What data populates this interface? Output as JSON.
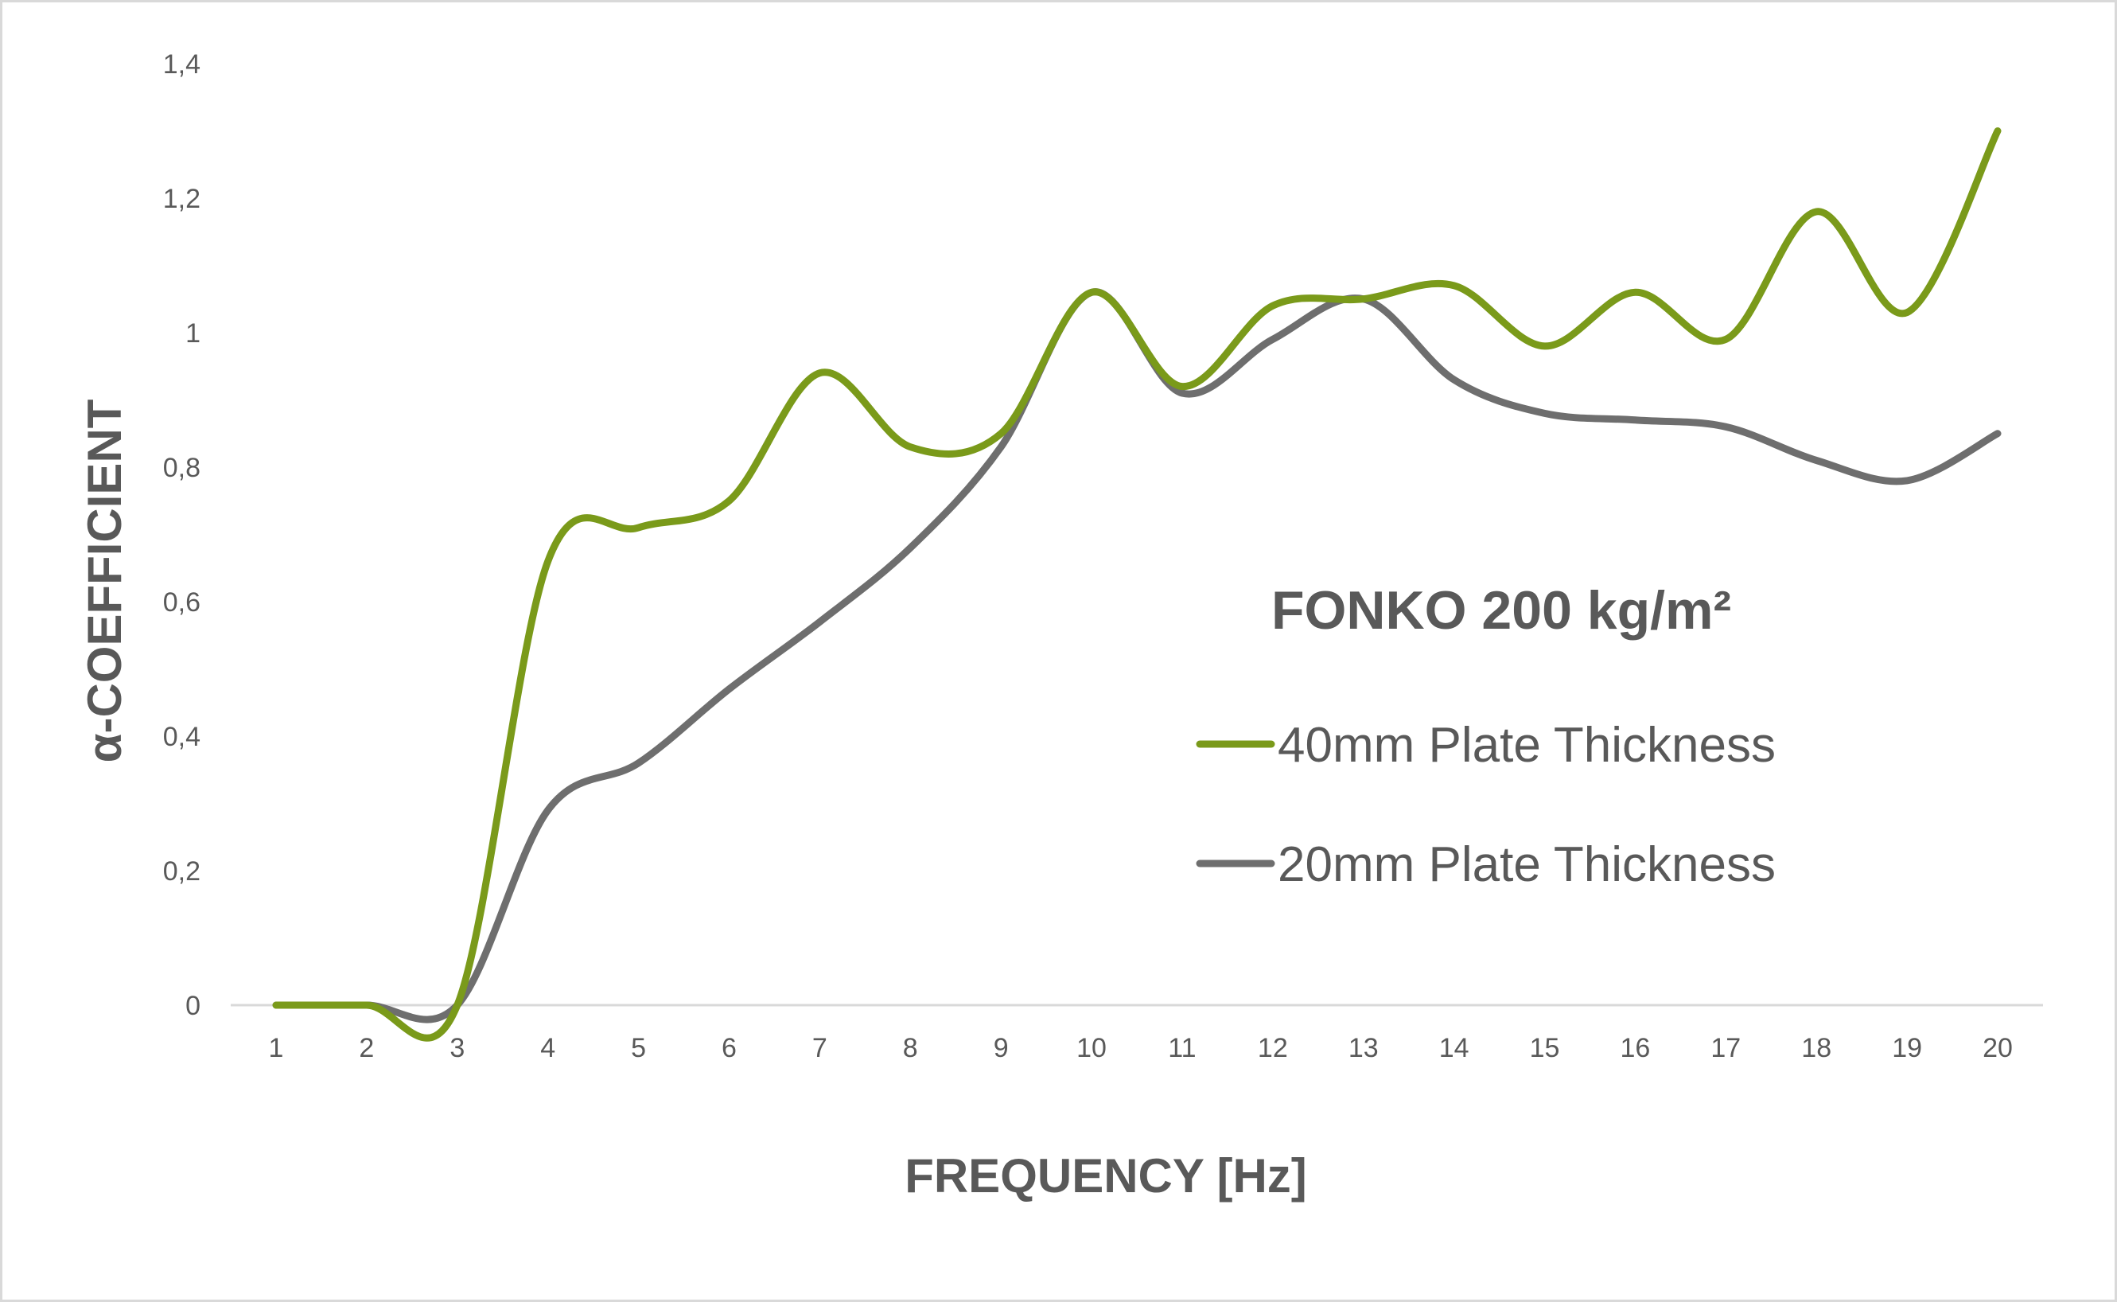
{
  "chart_data": {
    "type": "line",
    "title": "FONKO 200 kg/m²",
    "xlabel": "FREQUENCY [Hz]",
    "ylabel": "α-COEFFICIENT",
    "x": [
      1,
      2,
      3,
      4,
      5,
      6,
      7,
      8,
      9,
      10,
      11,
      12,
      13,
      14,
      15,
      16,
      17,
      18,
      19,
      20
    ],
    "x_tick_labels": [
      "1",
      "2",
      "3",
      "4",
      "5",
      "6",
      "7",
      "8",
      "9",
      "10",
      "11",
      "12",
      "13",
      "14",
      "15",
      "16",
      "17",
      "18",
      "19",
      "20"
    ],
    "y_ticks": [
      0,
      0.2,
      0.4,
      0.6,
      0.8,
      1,
      1.2,
      1.4
    ],
    "y_tick_labels": [
      "0",
      "0,2",
      "0,4",
      "0,6",
      "0,8",
      "1",
      "1,2",
      "1,4"
    ],
    "ylim": [
      0,
      1.4
    ],
    "grid": false,
    "legend_position": "right-middle",
    "series": [
      {
        "name": "40mm Plate Thickness",
        "color": "#7A9A1A",
        "values": [
          0,
          0,
          0,
          0.66,
          0.71,
          0.75,
          0.94,
          0.83,
          0.85,
          1.06,
          0.92,
          1.04,
          1.05,
          1.07,
          0.98,
          1.06,
          0.99,
          1.18,
          1.03,
          1.3
        ]
      },
      {
        "name": "20mm Plate Thickness",
        "color": "#6E6E6E",
        "values": [
          0,
          0,
          0,
          0.29,
          0.36,
          0.47,
          0.57,
          0.68,
          0.83,
          1.06,
          0.91,
          0.99,
          1.05,
          0.93,
          0.88,
          0.87,
          0.86,
          0.81,
          0.78,
          0.85
        ]
      }
    ]
  }
}
